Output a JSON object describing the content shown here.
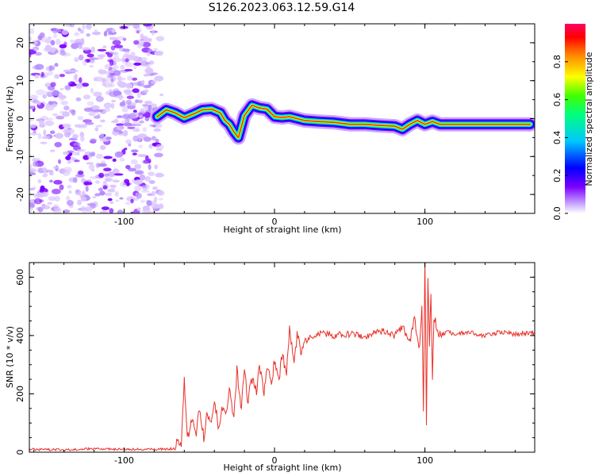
{
  "title": "S126.2023.063.12.59.G14",
  "chart_data": [
    {
      "type": "heatmap",
      "xlabel": "Height of straight line (km)",
      "ylabel": "Frequency (Hz)",
      "xlim": [
        -163,
        173
      ],
      "ylim": [
        -25,
        25
      ],
      "xticks": [
        -100,
        0,
        100
      ],
      "yticks": [
        -20,
        -10,
        0,
        10,
        20
      ],
      "colorbar": {
        "label": "Normalized spectral amplitude",
        "range": [
          0,
          1
        ],
        "ticks": [
          "0.0",
          "0.2",
          "0.4",
          "0.6",
          "0.8"
        ],
        "colors": [
          "#ffffff",
          "#c9a8ff",
          "#7b00ff",
          "#0000ff",
          "#00c8ff",
          "#00ff80",
          "#40ff00",
          "#ffff00",
          "#ff8000",
          "#ff0000",
          "#ff0066"
        ]
      },
      "ridge": {
        "x": [
          -78,
          -72,
          -66,
          -60,
          -54,
          -48,
          -42,
          -36,
          -33,
          -30,
          -27,
          -24,
          -20,
          -15,
          -10,
          -5,
          0,
          5,
          10,
          20,
          30,
          40,
          50,
          60,
          70,
          80,
          85,
          90,
          95,
          100,
          105,
          110,
          120,
          140,
          160,
          170
        ],
        "y": [
          0.5,
          2.3,
          1.5,
          0.2,
          1.2,
          2.3,
          2.5,
          1.5,
          -0.5,
          -1.5,
          -3.5,
          -5.0,
          0.8,
          3.5,
          2.8,
          2.5,
          0.5,
          0.3,
          0.5,
          -0.5,
          -0.8,
          -1.0,
          -1.5,
          -1.5,
          -1.8,
          -2.0,
          -2.8,
          -1.5,
          -0.5,
          -1.5,
          -0.8,
          -1.5,
          -1.5,
          -1.5,
          -1.5,
          -1.5
        ]
      },
      "noise_region_x": [
        -163,
        -75
      ]
    },
    {
      "type": "line",
      "xlabel": "Height of straight line (km)",
      "ylabel": "SNR (10 * v/v)",
      "xlim": [
        -163,
        173
      ],
      "ylim": [
        0,
        650
      ],
      "xticks": [
        -100,
        0,
        100
      ],
      "yticks": [
        0,
        200,
        400,
        600
      ],
      "color": "#e8312a",
      "x": [
        -163,
        -140,
        -120,
        -100,
        -80,
        -66,
        -64,
        -62,
        -60,
        -58,
        -55,
        -52,
        -50,
        -47,
        -45,
        -42,
        -40,
        -37,
        -35,
        -32,
        -30,
        -27,
        -25,
        -22,
        -20,
        -18,
        -15,
        -12,
        -10,
        -7,
        -5,
        -2,
        0,
        3,
        5,
        8,
        10,
        13,
        15,
        18,
        20,
        25,
        30,
        40,
        50,
        60,
        70,
        80,
        85,
        90,
        93,
        96,
        98,
        99,
        100,
        101,
        102,
        103,
        104,
        105,
        106,
        108,
        110,
        115,
        120,
        130,
        140,
        150,
        160,
        173
      ],
      "y": [
        10,
        8,
        12,
        10,
        10,
        12,
        50,
        20,
        240,
        40,
        110,
        60,
        150,
        50,
        130,
        90,
        180,
        80,
        150,
        130,
        220,
        110,
        280,
        150,
        300,
        170,
        250,
        210,
        290,
        200,
        300,
        230,
        320,
        250,
        330,
        280,
        420,
        300,
        400,
        340,
        380,
        400,
        410,
        400,
        405,
        395,
        415,
        400,
        430,
        380,
        460,
        340,
        490,
        150,
        650,
        90,
        600,
        380,
        560,
        260,
        460,
        430,
        400,
        410,
        405,
        410,
        400,
        412,
        405,
        410
      ]
    }
  ]
}
